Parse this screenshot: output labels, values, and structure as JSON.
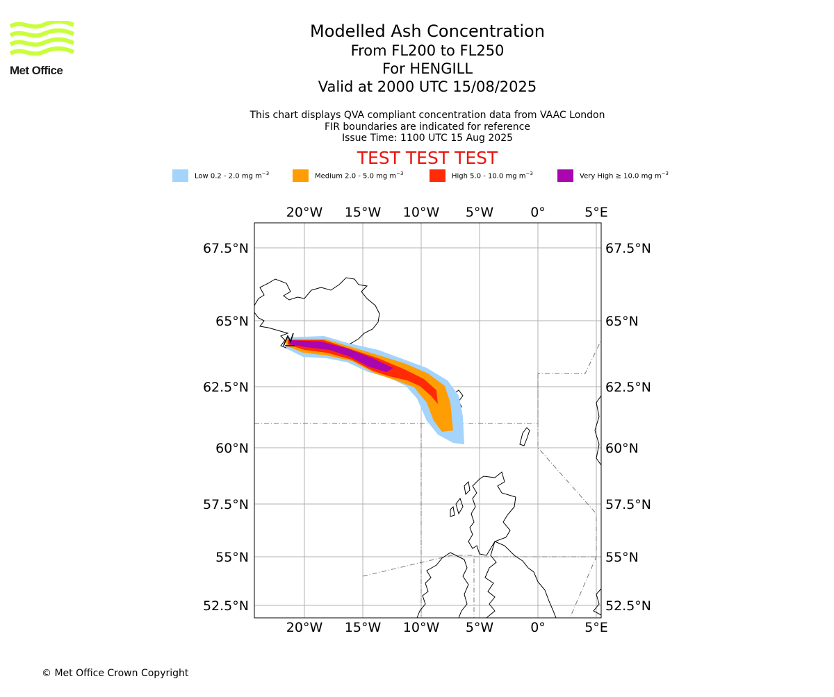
{
  "logo": {
    "text": "Met Office",
    "wave_color": "#c8ff3a"
  },
  "header": {
    "title": "Modelled Ash Concentration",
    "levels": "From FL200 to FL250",
    "location": "For HENGILL",
    "valid": "Valid at 2000 UTC 15/08/2025"
  },
  "info": {
    "line1": "This chart displays QVA compliant concentration data from VAAC London",
    "line2": "FIR boundaries are indicated for reference",
    "line3": "Issue Time: 1100 UTC 15 Aug 2025"
  },
  "test_banner": {
    "text": "TEST TEST TEST",
    "color": "#e8140f"
  },
  "legend": [
    {
      "label": "Low 0.2 - 2.0 mg m",
      "exp": "−3",
      "color": "#a4d4fc"
    },
    {
      "label": "Medium 2.0 - 5.0 mg m",
      "exp": "−3",
      "color": "#ff9d05"
    },
    {
      "label": "High 5.0 - 10.0 mg m",
      "exp": "−3",
      "color": "#ff2b06"
    },
    {
      "label": "Very High ≥ 10.0 mg m",
      "exp": "−3",
      "color": "#a905b1"
    }
  ],
  "map": {
    "lon_ticks": [
      "20°W",
      "15°W",
      "10°W",
      "5°W",
      "0°",
      "5°E"
    ],
    "lat_ticks": [
      "67.5°N",
      "65°N",
      "62.5°N",
      "60°N",
      "57.5°N",
      "55°N",
      "52.5°N"
    ],
    "grid": true
  },
  "footer": {
    "copyright": "© Met Office Crown Copyright"
  }
}
